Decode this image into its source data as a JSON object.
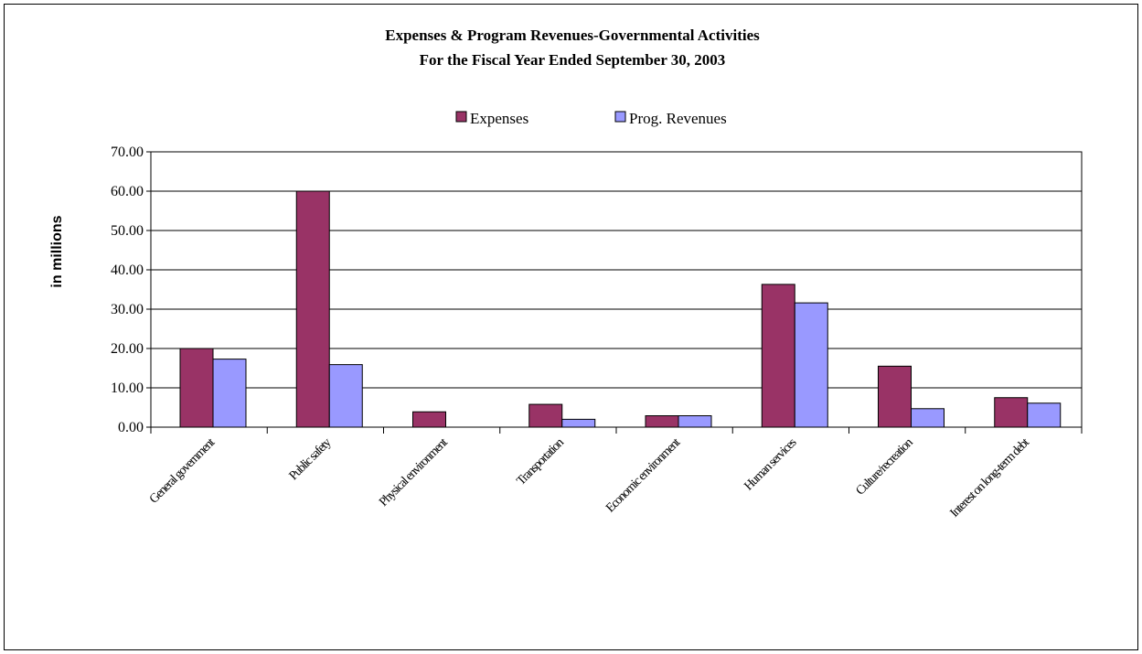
{
  "chart_data": {
    "type": "bar",
    "title": "Expenses & Program Revenues-Governmental Activities",
    "subtitle": "For the Fiscal Year Ended September 30, 2003",
    "xlabel": "",
    "ylabel": "in millions",
    "ylim": [
      0,
      70
    ],
    "yticks": [
      "0.00",
      "10.00",
      "20.00",
      "30.00",
      "40.00",
      "50.00",
      "60.00",
      "70.00"
    ],
    "grid": true,
    "legend_position": "top",
    "categories": [
      "General government",
      "Public safety",
      "Physical environment",
      "Transportation",
      "Economic environment",
      "Human services",
      "Culture/recreation",
      "Interest on long-term debt"
    ],
    "series": [
      {
        "name": "Expenses",
        "color": "#993366",
        "values": [
          20.0,
          60.0,
          3.9,
          5.8,
          2.9,
          36.3,
          15.5,
          7.5
        ]
      },
      {
        "name": "Prog. Revenues",
        "color": "#9999ff",
        "values": [
          17.3,
          15.9,
          0.0,
          2.0,
          2.9,
          31.6,
          4.7,
          6.1
        ]
      }
    ]
  }
}
